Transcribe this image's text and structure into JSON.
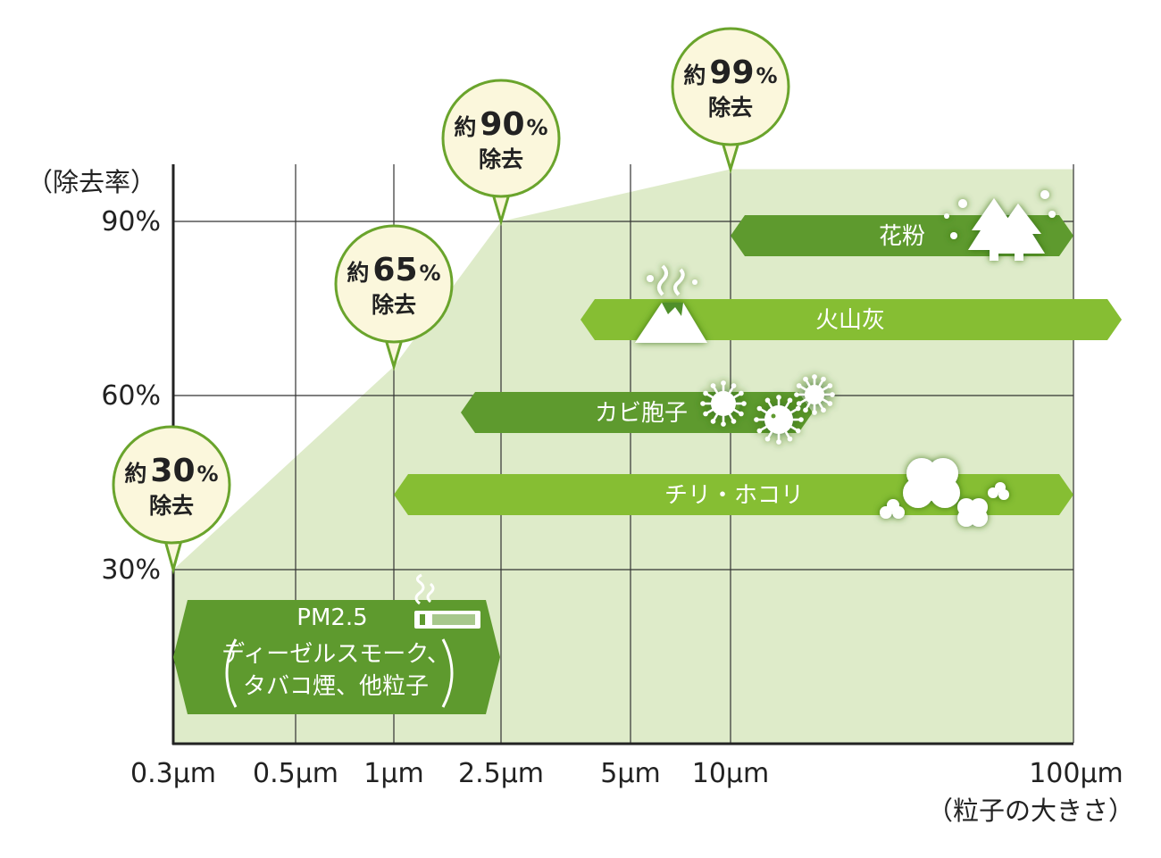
{
  "colors": {
    "area_fill": "#deebc9",
    "grid": "#333333",
    "axis": "#222222",
    "balloon_fill": "#fbf7dc",
    "balloon_stroke": "#6aa42c",
    "band_dark": "#5e9a2e",
    "band_light": "#86be33"
  },
  "chart_data": {
    "type": "area",
    "ylabel": "（除去率）",
    "xlabel": "（粒子の大きさ）",
    "x_ticks": [
      "0.3μm",
      "0.5μm",
      "1μm",
      "2.5μm",
      "5μm",
      "10μm",
      "100μm"
    ],
    "y_ticks": [
      "30%",
      "60%",
      "90%"
    ],
    "y_range": [
      0,
      100
    ],
    "grid": true,
    "removal_curve": [
      {
        "x": "0.3μm",
        "y": 30
      },
      {
        "x": "1μm",
        "y": 65
      },
      {
        "x": "2.5μm",
        "y": 90
      },
      {
        "x": "10μm",
        "y": 99
      },
      {
        "x": "100μm",
        "y": 99
      }
    ],
    "annotations": [
      {
        "x": "0.3μm",
        "prefix": "約",
        "value": "30",
        "unit": "%",
        "suffix": "除去"
      },
      {
        "x": "1μm",
        "prefix": "約",
        "value": "65",
        "unit": "%",
        "suffix": "除去"
      },
      {
        "x": "2.5μm",
        "prefix": "約",
        "value": "90",
        "unit": "%",
        "suffix": "除去"
      },
      {
        "x": "10μm",
        "prefix": "約",
        "value": "99",
        "unit": "%",
        "suffix": "除去"
      }
    ],
    "particles": [
      {
        "label": "花粉",
        "range": [
          "10μm",
          "100μm"
        ],
        "icon": "tree-icon",
        "tone": "dark"
      },
      {
        "label": "火山灰",
        "range": [
          "5μm",
          "100μm"
        ],
        "icon": "volcano-icon",
        "tone": "light"
      },
      {
        "label": "カビ胞子",
        "range": [
          "2.5μm",
          "10μm"
        ],
        "icon": "spore-icon",
        "tone": "dark"
      },
      {
        "label": "チリ・ホコリ",
        "range": [
          "1μm",
          "100μm"
        ],
        "icon": "dust-cloud-icon",
        "tone": "light"
      },
      {
        "label": "PM2.5",
        "lines": [
          "ディーゼルスモーク、",
          "タバコ煙、他粒子"
        ],
        "range": [
          "0.3μm",
          "2.5μm"
        ],
        "icon": "cigarette-icon",
        "tone": "dark"
      }
    ]
  }
}
